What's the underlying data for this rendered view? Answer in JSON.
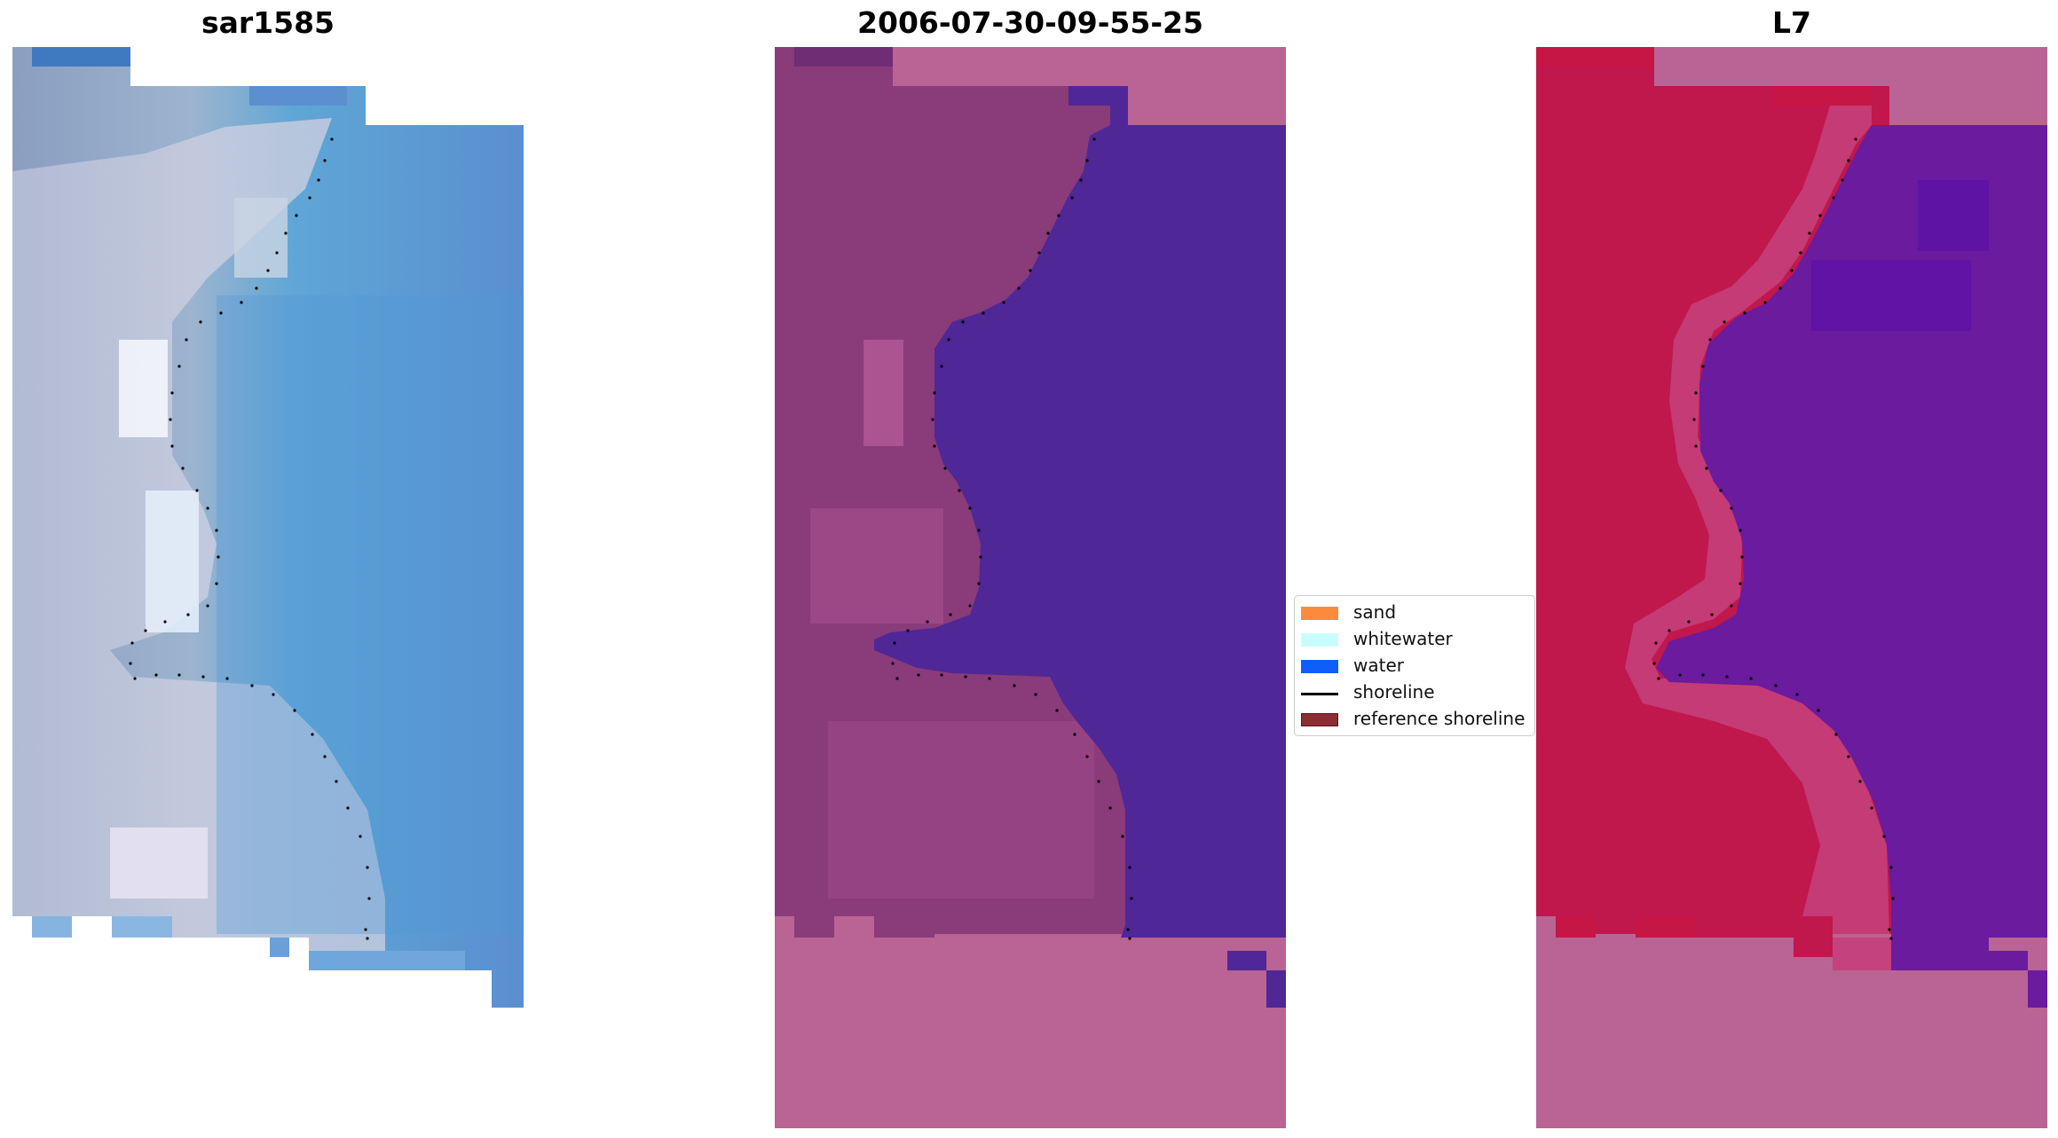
{
  "panels": {
    "rgb": {
      "title": "sar1585"
    },
    "classified": {
      "title": "2006-07-30-09-55-25"
    },
    "index": {
      "title": "L7"
    }
  },
  "legend": {
    "items": [
      {
        "label": "sand",
        "color": "#fb8a3d",
        "kind": "patch"
      },
      {
        "label": "whitewater",
        "color": "#c9fdfd",
        "kind": "patch"
      },
      {
        "label": "water",
        "color": "#0d5efa",
        "kind": "patch"
      },
      {
        "label": "shoreline",
        "color": "#000000",
        "kind": "line"
      },
      {
        "label": "reference shoreline",
        "color": "#8b2e33",
        "kind": "patch"
      }
    ]
  },
  "colors": {
    "pink_nodata": "#b96495",
    "deep_purple": "#4f2797",
    "land_magenta": "#8a3b7a",
    "crimson": "#c0174d",
    "violet": "#6a1b9e",
    "rgb_blue": "#5d8fca",
    "rgb_white": "#dfe3ee"
  }
}
